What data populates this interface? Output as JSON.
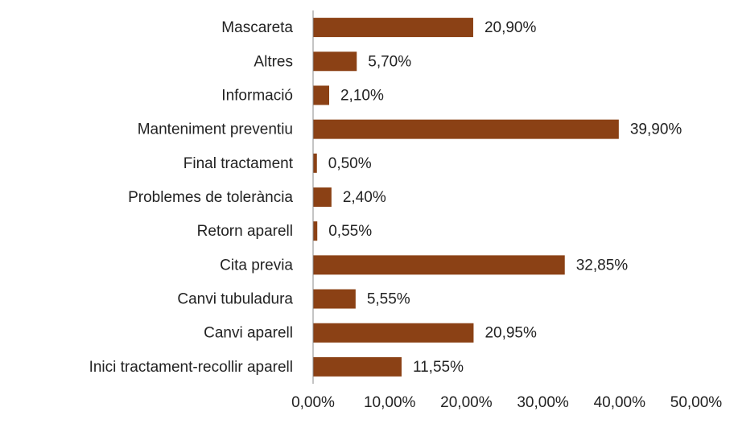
{
  "chart_data": {
    "type": "hbar",
    "categories": [
      "Mascareta",
      "Altres",
      "Informació",
      "Manteniment preventiu",
      "Final tractament",
      "Problemes de tolerància",
      "Retorn aparell",
      "Cita previa",
      "Canvi tubuladura",
      "Canvi aparell",
      "Inici tractament-recollir aparell"
    ],
    "values": [
      20.9,
      5.7,
      2.1,
      39.9,
      0.5,
      2.4,
      0.55,
      32.85,
      5.55,
      20.95,
      11.55
    ],
    "value_labels": [
      "20,90%",
      "5,70%",
      "2,10%",
      "39,90%",
      "0,50%",
      "2,40%",
      "0,55%",
      "32,85%",
      "5,55%",
      "20,95%",
      "11,55%"
    ],
    "color": "#8b4115",
    "xlim": [
      0,
      50
    ],
    "xticks": [
      {
        "value": 0,
        "label": "0,00%"
      },
      {
        "value": 10,
        "label": "10,00%"
      },
      {
        "value": 20,
        "label": "20,00%"
      },
      {
        "value": 30,
        "label": "30,00%"
      },
      {
        "value": 40,
        "label": "40,00%"
      },
      {
        "value": 50,
        "label": "50,00%"
      }
    ]
  }
}
